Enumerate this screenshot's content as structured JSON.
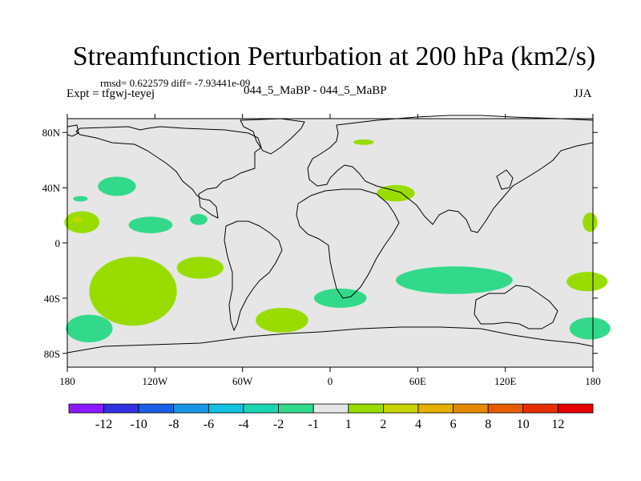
{
  "chart_data": {
    "type": "heatmap",
    "title": "Streamfunction Perturbation at 200 hPa (km2/s)",
    "stats": "rmsd= 0.622579 diff= -7.93441e-09",
    "experiment": "Expt = tfgwj-teyej",
    "comparison": "044_5_MaBP - 044_5_MaBP",
    "season": "JJA",
    "xlim": [
      -180,
      180
    ],
    "ylim": [
      -90,
      90
    ],
    "x_ticks": [
      {
        "value": -180,
        "label": "180"
      },
      {
        "value": -120,
        "label": "120W"
      },
      {
        "value": -60,
        "label": "60W"
      },
      {
        "value": 0,
        "label": "0"
      },
      {
        "value": 60,
        "label": "60E"
      },
      {
        "value": 120,
        "label": "120E"
      },
      {
        "value": 180,
        "label": "180"
      }
    ],
    "y_ticks": [
      {
        "value": 80,
        "label": "80N"
      },
      {
        "value": 40,
        "label": "40N"
      },
      {
        "value": 0,
        "label": "0"
      },
      {
        "value": -40,
        "label": "40S"
      },
      {
        "value": -80,
        "label": "80S"
      }
    ],
    "colorbar": {
      "levels": [
        "-12",
        "-10",
        "-8",
        "-6",
        "-4",
        "-2",
        "-1",
        "1",
        "2",
        "4",
        "6",
        "8",
        "10",
        "12"
      ],
      "colors": [
        "#8a1aff",
        "#3030e0",
        "#1a5fe6",
        "#1a96e6",
        "#12c2e0",
        "#1ad6b4",
        "#33d98a",
        "#e6e6e6",
        "#99dd00",
        "#c8d400",
        "#e6b000",
        "#e68a00",
        "#e65c00",
        "#e62e00",
        "#e60000"
      ]
    },
    "anomaly_regions": [
      {
        "bin": "-2 to -1",
        "lon": -146,
        "lat": 41,
        "rlon": 13,
        "rlat": 7
      },
      {
        "bin": "-2 to -1",
        "lon": -123,
        "lat": 13,
        "rlon": 15,
        "rlat": 6
      },
      {
        "bin": "-2 to -1",
        "lon": -90,
        "lat": 17,
        "rlon": 6,
        "rlat": 4
      },
      {
        "bin": "-2 to -1",
        "lon": -171,
        "lat": 32,
        "rlon": 5,
        "rlat": 2
      },
      {
        "bin": "-2 to -1",
        "lon": 7,
        "lat": -40,
        "rlon": 18,
        "rlat": 7
      },
      {
        "bin": "-2 to -1",
        "lon": 85,
        "lat": -27,
        "rlon": 40,
        "rlat": 10
      },
      {
        "bin": "-2 to -1",
        "lon": -165,
        "lat": -62,
        "rlon": 16,
        "rlat": 10
      },
      {
        "bin": "-2 to -1",
        "lon": 178,
        "lat": -62,
        "rlon": 14,
        "rlat": 8
      },
      {
        "bin": "1 to 2",
        "lon": -170,
        "lat": 15,
        "rlon": 12,
        "rlat": 8
      },
      {
        "bin": "1 to 2",
        "lon": -89,
        "lat": -18,
        "rlon": 16,
        "rlat": 8
      },
      {
        "bin": "1 to 2",
        "lon": -135,
        "lat": -35,
        "rlon": 30,
        "rlat": 25
      },
      {
        "bin": "1 to 2",
        "lon": -33,
        "lat": -56,
        "rlon": 18,
        "rlat": 9
      },
      {
        "bin": "1 to 2",
        "lon": 23,
        "lat": 73,
        "rlon": 7,
        "rlat": 2
      },
      {
        "bin": "1 to 2",
        "lon": 45,
        "lat": 36,
        "rlon": 13,
        "rlat": 6
      },
      {
        "bin": "1 to 2",
        "lon": 176,
        "lat": -28,
        "rlon": 14,
        "rlat": 7
      },
      {
        "bin": "1 to 2",
        "lon": 178,
        "lat": 15,
        "rlon": 5,
        "rlat": 7
      },
      {
        "bin": "2 to 4",
        "lon": -173,
        "lat": 17,
        "rlon": 3,
        "rlat": 2
      }
    ]
  }
}
